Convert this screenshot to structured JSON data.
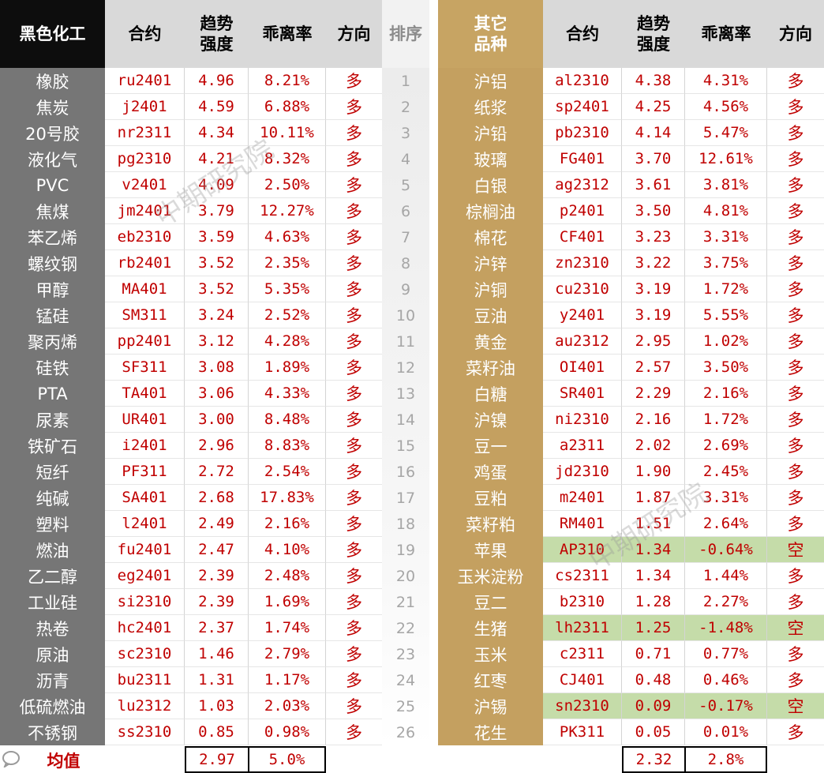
{
  "headers": {
    "left_category": "黑色化工",
    "contract": "合约",
    "trend_strength": [
      "趋势",
      "强度"
    ],
    "deviation": "乖离率",
    "direction": "方向",
    "rank": "排序",
    "right_category": [
      "其它",
      "品种"
    ]
  },
  "left_rows": [
    {
      "name": "橡胶",
      "contract": "ru2401",
      "strength": "4.96",
      "deviation": "8.21%",
      "direction": "多"
    },
    {
      "name": "焦炭",
      "contract": "j2401",
      "strength": "4.59",
      "deviation": "6.88%",
      "direction": "多"
    },
    {
      "name": "20号胶",
      "contract": "nr2311",
      "strength": "4.34",
      "deviation": "10.11%",
      "direction": "多"
    },
    {
      "name": "液化气",
      "contract": "pg2310",
      "strength": "4.21",
      "deviation": "8.32%",
      "direction": "多"
    },
    {
      "name": "PVC",
      "contract": "v2401",
      "strength": "4.09",
      "deviation": "2.50%",
      "direction": "多"
    },
    {
      "name": "焦煤",
      "contract": "jm2401",
      "strength": "3.79",
      "deviation": "12.27%",
      "direction": "多"
    },
    {
      "name": "苯乙烯",
      "contract": "eb2310",
      "strength": "3.59",
      "deviation": "4.63%",
      "direction": "多"
    },
    {
      "name": "螺纹钢",
      "contract": "rb2401",
      "strength": "3.52",
      "deviation": "2.35%",
      "direction": "多"
    },
    {
      "name": "甲醇",
      "contract": "MA401",
      "strength": "3.52",
      "deviation": "5.35%",
      "direction": "多"
    },
    {
      "name": "锰硅",
      "contract": "SM311",
      "strength": "3.24",
      "deviation": "2.52%",
      "direction": "多"
    },
    {
      "name": "聚丙烯",
      "contract": "pp2401",
      "strength": "3.12",
      "deviation": "4.28%",
      "direction": "多"
    },
    {
      "name": "硅铁",
      "contract": "SF311",
      "strength": "3.08",
      "deviation": "1.89%",
      "direction": "多"
    },
    {
      "name": "PTA",
      "contract": "TA401",
      "strength": "3.06",
      "deviation": "4.33%",
      "direction": "多"
    },
    {
      "name": "尿素",
      "contract": "UR401",
      "strength": "3.00",
      "deviation": "8.48%",
      "direction": "多"
    },
    {
      "name": "铁矿石",
      "contract": "i2401",
      "strength": "2.96",
      "deviation": "8.83%",
      "direction": "多"
    },
    {
      "name": "短纤",
      "contract": "PF311",
      "strength": "2.72",
      "deviation": "2.54%",
      "direction": "多"
    },
    {
      "name": "纯碱",
      "contract": "SA401",
      "strength": "2.68",
      "deviation": "17.83%",
      "direction": "多"
    },
    {
      "name": "塑料",
      "contract": "l2401",
      "strength": "2.49",
      "deviation": "2.16%",
      "direction": "多"
    },
    {
      "name": "燃油",
      "contract": "fu2401",
      "strength": "2.47",
      "deviation": "4.10%",
      "direction": "多"
    },
    {
      "name": "乙二醇",
      "contract": "eg2401",
      "strength": "2.39",
      "deviation": "2.48%",
      "direction": "多"
    },
    {
      "name": "工业硅",
      "contract": "si2310",
      "strength": "2.39",
      "deviation": "1.69%",
      "direction": "多"
    },
    {
      "name": "热卷",
      "contract": "hc2401",
      "strength": "2.37",
      "deviation": "1.74%",
      "direction": "多"
    },
    {
      "name": "原油",
      "contract": "sc2310",
      "strength": "1.46",
      "deviation": "2.79%",
      "direction": "多"
    },
    {
      "name": "沥青",
      "contract": "bu2311",
      "strength": "1.31",
      "deviation": "1.17%",
      "direction": "多"
    },
    {
      "name": "低硫燃油",
      "contract": "lu2312",
      "strength": "1.03",
      "deviation": "2.03%",
      "direction": "多"
    },
    {
      "name": "不锈钢",
      "contract": "ss2310",
      "strength": "0.85",
      "deviation": "0.98%",
      "direction": "多"
    }
  ],
  "ranks": [
    "1",
    "2",
    "3",
    "4",
    "5",
    "6",
    "7",
    "8",
    "9",
    "10",
    "11",
    "12",
    "13",
    "14",
    "15",
    "16",
    "17",
    "18",
    "19",
    "20",
    "21",
    "22",
    "23",
    "24",
    "25",
    "26"
  ],
  "right_rows": [
    {
      "name": "沪铝",
      "contract": "al2310",
      "strength": "4.38",
      "deviation": "4.31%",
      "direction": "多",
      "short": false
    },
    {
      "name": "纸浆",
      "contract": "sp2401",
      "strength": "4.25",
      "deviation": "4.56%",
      "direction": "多",
      "short": false
    },
    {
      "name": "沪铅",
      "contract": "pb2310",
      "strength": "4.14",
      "deviation": "5.47%",
      "direction": "多",
      "short": false
    },
    {
      "name": "玻璃",
      "contract": "FG401",
      "strength": "3.70",
      "deviation": "12.61%",
      "direction": "多",
      "short": false
    },
    {
      "name": "白银",
      "contract": "ag2312",
      "strength": "3.61",
      "deviation": "3.81%",
      "direction": "多",
      "short": false
    },
    {
      "name": "棕榈油",
      "contract": "p2401",
      "strength": "3.50",
      "deviation": "4.81%",
      "direction": "多",
      "short": false
    },
    {
      "name": "棉花",
      "contract": "CF401",
      "strength": "3.23",
      "deviation": "3.31%",
      "direction": "多",
      "short": false
    },
    {
      "name": "沪锌",
      "contract": "zn2310",
      "strength": "3.22",
      "deviation": "3.75%",
      "direction": "多",
      "short": false
    },
    {
      "name": "沪铜",
      "contract": "cu2310",
      "strength": "3.19",
      "deviation": "1.72%",
      "direction": "多",
      "short": false
    },
    {
      "name": "豆油",
      "contract": "y2401",
      "strength": "3.19",
      "deviation": "5.55%",
      "direction": "多",
      "short": false
    },
    {
      "name": "黄金",
      "contract": "au2312",
      "strength": "2.95",
      "deviation": "1.02%",
      "direction": "多",
      "short": false
    },
    {
      "name": "菜籽油",
      "contract": "OI401",
      "strength": "2.57",
      "deviation": "3.50%",
      "direction": "多",
      "short": false
    },
    {
      "name": "白糖",
      "contract": "SR401",
      "strength": "2.29",
      "deviation": "2.16%",
      "direction": "多",
      "short": false
    },
    {
      "name": "沪镍",
      "contract": "ni2310",
      "strength": "2.16",
      "deviation": "1.72%",
      "direction": "多",
      "short": false
    },
    {
      "name": "豆一",
      "contract": "a2311",
      "strength": "2.02",
      "deviation": "2.69%",
      "direction": "多",
      "short": false
    },
    {
      "name": "鸡蛋",
      "contract": "jd2310",
      "strength": "1.90",
      "deviation": "2.45%",
      "direction": "多",
      "short": false
    },
    {
      "name": "豆粕",
      "contract": "m2401",
      "strength": "1.87",
      "deviation": "3.31%",
      "direction": "多",
      "short": false
    },
    {
      "name": "菜籽粕",
      "contract": "RM401",
      "strength": "1.51",
      "deviation": "2.64%",
      "direction": "多",
      "short": false
    },
    {
      "name": "苹果",
      "contract": "AP310",
      "strength": "1.34",
      "deviation": "-0.64%",
      "direction": "空",
      "short": true
    },
    {
      "name": "玉米淀粉",
      "contract": "cs2311",
      "strength": "1.34",
      "deviation": "1.44%",
      "direction": "多",
      "short": false
    },
    {
      "name": "豆二",
      "contract": "b2310",
      "strength": "1.28",
      "deviation": "2.27%",
      "direction": "多",
      "short": false
    },
    {
      "name": "生猪",
      "contract": "lh2311",
      "strength": "1.25",
      "deviation": "-1.48%",
      "direction": "空",
      "short": true
    },
    {
      "name": "玉米",
      "contract": "c2311",
      "strength": "0.71",
      "deviation": "0.77%",
      "direction": "多",
      "short": false
    },
    {
      "name": "红枣",
      "contract": "CJ401",
      "strength": "0.48",
      "deviation": "0.46%",
      "direction": "多",
      "short": false
    },
    {
      "name": "沪锡",
      "contract": "sn2310",
      "strength": "0.09",
      "deviation": "-0.17%",
      "direction": "空",
      "short": true
    },
    {
      "name": "花生",
      "contract": "PK311",
      "strength": "0.05",
      "deviation": "0.01%",
      "direction": "多",
      "short": false
    }
  ],
  "average": {
    "label": "均值",
    "left_strength": "2.97",
    "left_deviation": "5.0%",
    "right_strength": "2.32",
    "right_deviation": "2.8%"
  },
  "watermark": "中期研究院",
  "corner_logo_icon": "chat-bubble-logo-icon",
  "colors": {
    "header_black": "#0d0d0d",
    "left_name_bg": "#767676",
    "right_name_bg": "#c4a060",
    "gold_header": "#c7a463",
    "value_red": "#c00000",
    "short_green": "#c5dca9"
  }
}
